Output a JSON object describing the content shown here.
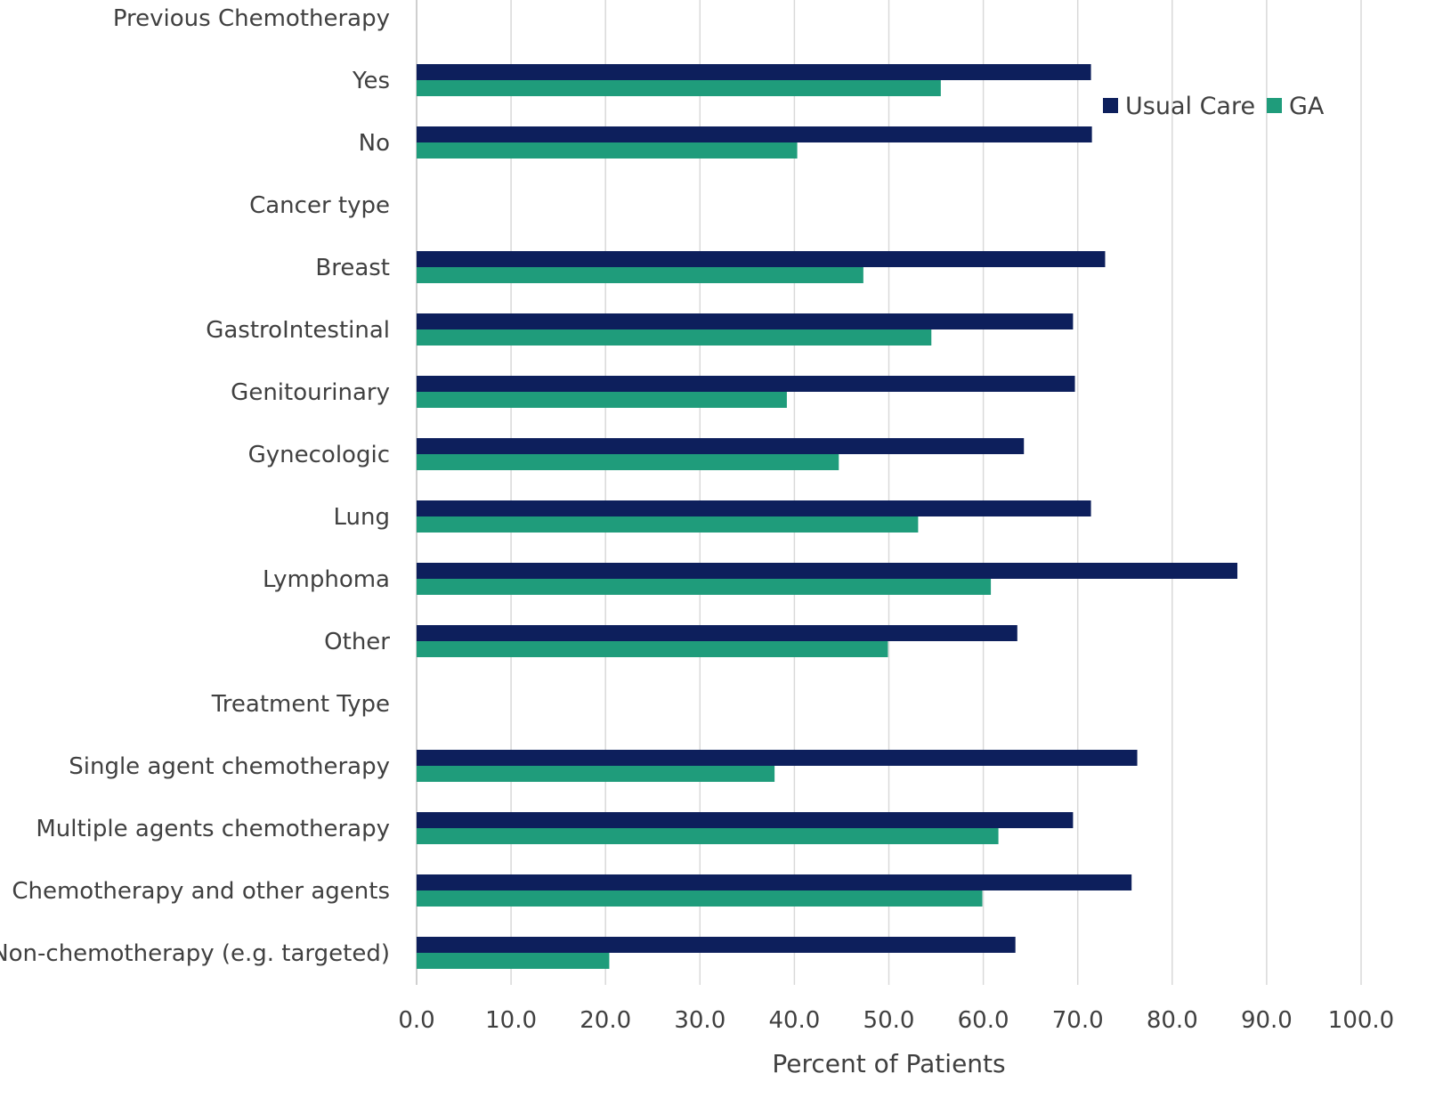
{
  "chart_data": {
    "type": "bar",
    "orientation": "horizontal",
    "title": "",
    "xlabel": "Percent of Patients",
    "ylabel": "",
    "xlim": [
      0,
      100
    ],
    "x_ticks": [
      "0.0",
      "10.0",
      "20.0",
      "30.0",
      "40.0",
      "50.0",
      "60.0",
      "70.0",
      "80.0",
      "90.0",
      "100.0"
    ],
    "grid": "vertical",
    "legend_position": "top-right",
    "categories": [
      "Previous Chemotherapy",
      "Yes",
      "No",
      "Cancer type",
      "Breast",
      "GastroIntestinal",
      "Genitourinary",
      "Gynecologic",
      "Lung",
      "Lymphoma",
      "Other",
      "Treatment Type",
      "Single agent chemotherapy",
      "Multiple agents chemotherapy",
      "Chemotherapy  and other agents",
      "Non-chemotherapy (e.g. targeted)"
    ],
    "series": [
      {
        "name": "Usual Care",
        "color": "#0d1f5c",
        "values": [
          null,
          71.4,
          71.5,
          null,
          72.9,
          69.5,
          69.7,
          64.3,
          71.4,
          86.9,
          63.6,
          null,
          76.3,
          69.5,
          75.7,
          63.4
        ]
      },
      {
        "name": "GA",
        "color": "#1f9c7b",
        "values": [
          null,
          55.5,
          40.3,
          null,
          47.3,
          54.5,
          39.2,
          44.7,
          53.1,
          60.8,
          49.9,
          null,
          37.9,
          61.6,
          59.9,
          20.4
        ]
      }
    ]
  }
}
